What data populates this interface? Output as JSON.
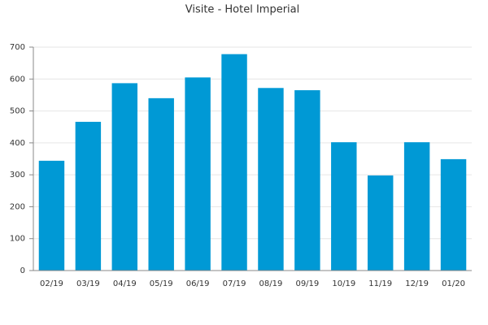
{
  "chart_data": {
    "type": "bar",
    "title": "Visite - Hotel Imperial",
    "categories": [
      "02/19",
      "03/19",
      "04/19",
      "05/19",
      "06/19",
      "07/19",
      "08/19",
      "09/19",
      "10/19",
      "11/19",
      "12/19",
      "01/20"
    ],
    "values": [
      344,
      466,
      587,
      540,
      605,
      678,
      572,
      565,
      402,
      298,
      402,
      349
    ],
    "color": "#0099d5",
    "ylim": [
      0,
      700
    ],
    "yticks": [
      0,
      100,
      200,
      300,
      400,
      500,
      600,
      700
    ],
    "grid": true
  }
}
